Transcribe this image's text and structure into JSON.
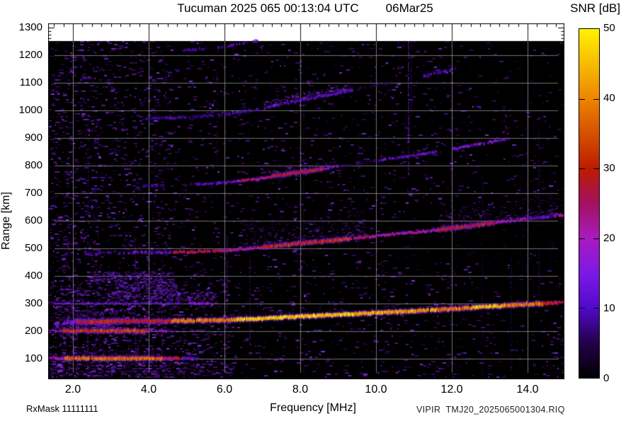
{
  "header": {
    "title_main": "Tucuman 2025 065 00:13:04 UTC",
    "title_date": "06Mar25"
  },
  "colorbar": {
    "title": "SNR [dB]",
    "tick_labels": [
      "50",
      "40",
      "30",
      "20",
      "10",
      "0"
    ]
  },
  "axes": {
    "y_label": "Range [km]",
    "y_tick_labels": [
      "1300",
      "1200",
      "1100",
      "1000",
      "900",
      "800",
      "700",
      "600",
      "500",
      "400",
      "300",
      "200",
      "100"
    ],
    "x_label": "Frequency [MHz]",
    "x_tick_labels": [
      "2.0",
      "4.0",
      "6.0",
      "8.0",
      "10.0",
      "12.0",
      "14.0"
    ]
  },
  "footer": {
    "rx_mask": "RxMask 11111111",
    "file_id": "VIPIR  TMJ20_2025065001304.RIQ"
  },
  "chart_data": {
    "type": "heatmap",
    "title": "Tucuman 2025 065 00:13:04 UTC  06Mar25",
    "xlabel": "Frequency [MHz]",
    "ylabel": "Range [km]",
    "xlim": [
      1.35,
      15.0
    ],
    "ylim": [
      28,
      1315
    ],
    "x_major_ticks": [
      2.0,
      4.0,
      6.0,
      8.0,
      10.0,
      12.0,
      14.0
    ],
    "y_major_ticks": [
      100,
      200,
      300,
      400,
      500,
      600,
      700,
      800,
      900,
      1000,
      1100,
      1200,
      1300
    ],
    "grid": true,
    "legend_position": "right-colorbar",
    "colorbar": {
      "label": "SNR [dB]",
      "min_db": 0,
      "max_db": 50,
      "ticks_db": [
        0,
        10,
        20,
        30,
        40,
        50
      ],
      "palette_stops": [
        {
          "db": 0,
          "color": "#000000"
        },
        {
          "db": 5,
          "color": "#24004a"
        },
        {
          "db": 10,
          "color": "#5209c9"
        },
        {
          "db": 15,
          "color": "#7d19e6"
        },
        {
          "db": 20,
          "color": "#a81bbf"
        },
        {
          "db": 25,
          "color": "#a31160"
        },
        {
          "db": 30,
          "color": "#bd1b00"
        },
        {
          "db": 40,
          "color": "#ee8500"
        },
        {
          "db": 50,
          "color": "#fff200"
        }
      ]
    },
    "f_trace_hop1_points_mhz_km": [
      [
        1.5,
        229
      ],
      [
        2,
        233
      ],
      [
        3,
        236
      ],
      [
        4,
        236.5
      ],
      [
        5,
        237.5
      ],
      [
        6,
        240
      ],
      [
        7,
        245.5
      ],
      [
        8,
        253
      ],
      [
        9,
        259.5
      ],
      [
        10,
        266.5
      ],
      [
        11,
        273
      ],
      [
        12,
        280.5
      ],
      [
        13,
        289
      ],
      [
        14,
        297.5
      ],
      [
        14.5,
        301
      ],
      [
        15,
        305
      ]
    ],
    "multihop_echoes": [
      {
        "hop": 1,
        "offset_km": 0,
        "f_range_mhz": [
          1.5,
          15.0
        ],
        "peak_snr_db": 46
      },
      {
        "hop": 2,
        "offset_km": 12,
        "f_range_mhz": [
          2.3,
          15.0
        ],
        "peak_snr_db": 30
      },
      {
        "hop": 3,
        "offset_km": 18,
        "f_range_mhz": [
          3.8,
          13.5
        ],
        "peak_snr_db": 28
      },
      {
        "hop": 4,
        "offset_km": 25,
        "f_range_mhz": [
          3.8,
          12.1
        ],
        "peak_snr_db": 13
      },
      {
        "hop": 5,
        "offset_km": 30,
        "f_range_mhz": [
          4.9,
          6.9
        ],
        "peak_snr_db": 11
      }
    ],
    "e_layer_traces": [
      {
        "range_km": 100,
        "f_range_mhz": [
          1.35,
          5.3
        ],
        "peak_snr_db": 37
      },
      {
        "range_km": 200,
        "f_range_mhz": [
          1.35,
          4.75
        ],
        "peak_snr_db": 33
      },
      {
        "range_km": 300,
        "f_range_mhz": [
          1.35,
          5.65
        ],
        "peak_snr_db": 15
      }
    ],
    "background": "black with purple speckle noise, denser below 450 km for f < 4.5 MHz; vertical RFI stripes; diffuse spread echoes above 2-hop trace near 7-9.5 and 12-15 MHz; no data above ~1250 km (white band)"
  }
}
